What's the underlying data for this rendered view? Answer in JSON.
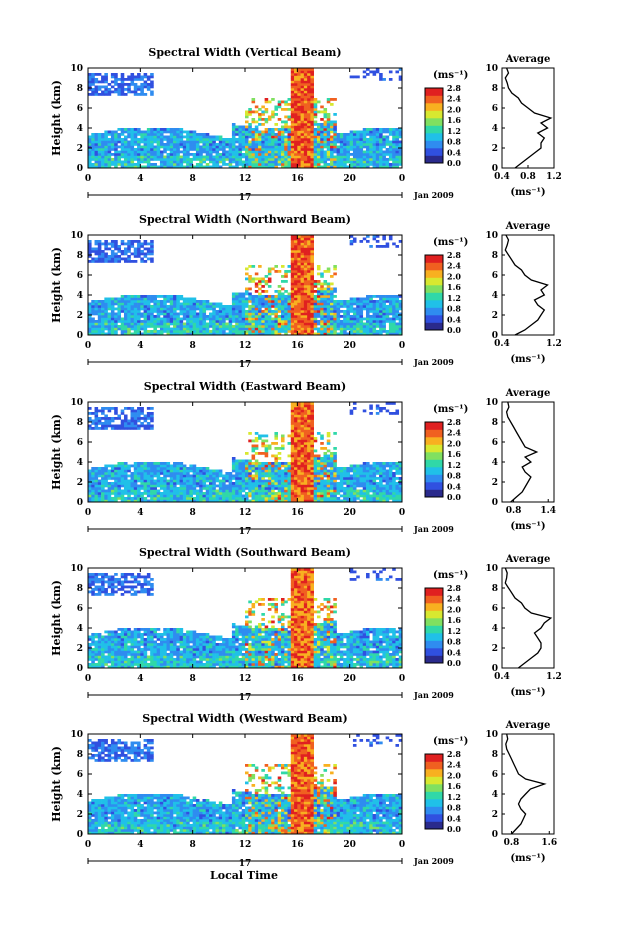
{
  "figure": {
    "x_axis_label": "Local Time",
    "date_label": "Jan 2009",
    "day_marker": "17",
    "unit_label": "(ms⁻¹)",
    "avg_title": "Average",
    "height_label": "Height (km)"
  },
  "chart_data": [
    {
      "type": "heatmap",
      "title": "Spectral Width (Vertical Beam)",
      "ylabel": "Height (km)",
      "xlabel": "Local Time",
      "x_ticks": [
        "0",
        "4",
        "8",
        "12",
        "16",
        "20",
        "0"
      ],
      "y_ticks": [
        "0",
        "2",
        "4",
        "6",
        "8",
        "10"
      ],
      "xlim": [
        0,
        24
      ],
      "ylim": [
        0,
        10
      ],
      "colorbar": {
        "label": "(ms⁻¹)",
        "ticks": [
          "0.0",
          "0.4",
          "0.8",
          "1.2",
          "1.6",
          "2.0",
          "2.4",
          "2.8"
        ]
      },
      "average": {
        "title": "Average",
        "xlabel": "(ms⁻¹)",
        "xticks": [
          "0.4",
          "0.8",
          "1.2"
        ],
        "xlim": [
          0.4,
          1.2
        ],
        "profile": [
          [
            0,
            0.6
          ],
          [
            0.5,
            0.7
          ],
          [
            1,
            0.8
          ],
          [
            1.5,
            0.9
          ],
          [
            2,
            1.0
          ],
          [
            2.5,
            1.0
          ],
          [
            3,
            1.05
          ],
          [
            3.5,
            0.95
          ],
          [
            4,
            1.1
          ],
          [
            4.5,
            1.0
          ],
          [
            5,
            1.15
          ],
          [
            5.5,
            0.9
          ],
          [
            6,
            0.8
          ],
          [
            6.5,
            0.7
          ],
          [
            7,
            0.65
          ],
          [
            7.5,
            0.55
          ],
          [
            8,
            0.5
          ],
          [
            8.5,
            0.48
          ],
          [
            9,
            0.45
          ],
          [
            9.5,
            0.5
          ],
          [
            10,
            0.47
          ]
        ]
      }
    },
    {
      "type": "heatmap",
      "title": "Spectral Width (Northward Beam)",
      "ylabel": "Height (km)",
      "xlabel": "Local Time",
      "x_ticks": [
        "0",
        "4",
        "8",
        "12",
        "16",
        "20",
        "0"
      ],
      "y_ticks": [
        "0",
        "2",
        "4",
        "6",
        "8",
        "10"
      ],
      "xlim": [
        0,
        24
      ],
      "ylim": [
        0,
        10
      ],
      "colorbar": {
        "label": "(ms⁻¹)",
        "ticks": [
          "0.0",
          "0.4",
          "0.8",
          "1.2",
          "1.6",
          "2.0",
          "2.4",
          "2.8"
        ]
      },
      "average": {
        "title": "Average",
        "xlabel": "(ms⁻¹)",
        "xticks": [
          "0.4",
          "1.2"
        ],
        "xlim": [
          0.4,
          1.2
        ],
        "profile": [
          [
            0,
            0.6
          ],
          [
            0.5,
            0.75
          ],
          [
            1,
            0.85
          ],
          [
            1.5,
            0.95
          ],
          [
            2,
            1.0
          ],
          [
            2.5,
            1.05
          ],
          [
            3,
            0.95
          ],
          [
            3.5,
            0.9
          ],
          [
            4,
            1.05
          ],
          [
            4.5,
            1.0
          ],
          [
            5,
            1.1
          ],
          [
            5.5,
            0.85
          ],
          [
            6,
            0.75
          ],
          [
            6.5,
            0.7
          ],
          [
            7,
            0.6
          ],
          [
            7.5,
            0.55
          ],
          [
            8,
            0.5
          ],
          [
            8.5,
            0.45
          ],
          [
            9,
            0.48
          ],
          [
            9.5,
            0.5
          ],
          [
            10,
            0.46
          ]
        ]
      }
    },
    {
      "type": "heatmap",
      "title": "Spectral Width (Eastward Beam)",
      "ylabel": "Height (km)",
      "xlabel": "Local Time",
      "x_ticks": [
        "0",
        "4",
        "8",
        "12",
        "16",
        "20",
        "0"
      ],
      "y_ticks": [
        "0",
        "2",
        "4",
        "6",
        "8",
        "10"
      ],
      "xlim": [
        0,
        24
      ],
      "ylim": [
        0,
        10
      ],
      "colorbar": {
        "label": "(ms⁻¹)",
        "ticks": [
          "0.0",
          "0.4",
          "0.8",
          "1.2",
          "1.6",
          "2.0",
          "2.4",
          "2.8"
        ]
      },
      "average": {
        "title": "Average",
        "xlabel": "(ms⁻¹)",
        "xticks": [
          "0.8",
          "1.4"
        ],
        "xlim": [
          0.6,
          1.5
        ],
        "profile": [
          [
            0,
            0.75
          ],
          [
            0.5,
            0.85
          ],
          [
            1,
            0.95
          ],
          [
            1.5,
            1.0
          ],
          [
            2,
            1.05
          ],
          [
            2.5,
            1.1
          ],
          [
            3,
            1.0
          ],
          [
            3.5,
            0.95
          ],
          [
            4,
            1.1
          ],
          [
            4.5,
            1.0
          ],
          [
            5,
            1.2
          ],
          [
            5.5,
            1.0
          ],
          [
            6,
            0.95
          ],
          [
            6.5,
            0.9
          ],
          [
            7,
            0.85
          ],
          [
            7.5,
            0.8
          ],
          [
            8,
            0.75
          ],
          [
            8.5,
            0.7
          ],
          [
            9,
            0.68
          ],
          [
            9.5,
            0.72
          ],
          [
            10,
            0.7
          ]
        ]
      }
    },
    {
      "type": "heatmap",
      "title": "Spectral Width (Southward Beam)",
      "ylabel": "Height (km)",
      "xlabel": "Local Time",
      "x_ticks": [
        "0",
        "4",
        "8",
        "12",
        "16",
        "20",
        "0"
      ],
      "y_ticks": [
        "0",
        "2",
        "4",
        "6",
        "8",
        "10"
      ],
      "xlim": [
        0,
        24
      ],
      "ylim": [
        0,
        10
      ],
      "colorbar": {
        "label": "(ms⁻¹)",
        "ticks": [
          "0.0",
          "0.4",
          "0.8",
          "1.2",
          "1.6",
          "2.0",
          "2.4",
          "2.8"
        ]
      },
      "average": {
        "title": "Average",
        "xlabel": "(ms⁻¹)",
        "xticks": [
          "0.4",
          "1.2"
        ],
        "xlim": [
          0.4,
          1.2
        ],
        "profile": [
          [
            0,
            0.65
          ],
          [
            0.5,
            0.75
          ],
          [
            1,
            0.85
          ],
          [
            1.5,
            0.95
          ],
          [
            2,
            1.0
          ],
          [
            2.5,
            1.0
          ],
          [
            3,
            0.95
          ],
          [
            3.5,
            0.9
          ],
          [
            4,
            1.0
          ],
          [
            4.5,
            1.05
          ],
          [
            5,
            1.15
          ],
          [
            5.5,
            0.85
          ],
          [
            6,
            0.75
          ],
          [
            6.5,
            0.7
          ],
          [
            7,
            0.6
          ],
          [
            7.5,
            0.55
          ],
          [
            8,
            0.5
          ],
          [
            8.5,
            0.45
          ],
          [
            9,
            0.47
          ],
          [
            9.5,
            0.48
          ],
          [
            10,
            0.45
          ]
        ]
      }
    },
    {
      "type": "heatmap",
      "title": "Spectral Width (Westward Beam)",
      "ylabel": "Height (km)",
      "xlabel": "Local Time",
      "x_ticks": [
        "0",
        "4",
        "8",
        "12",
        "16",
        "20",
        "0"
      ],
      "y_ticks": [
        "0",
        "2",
        "4",
        "6",
        "8",
        "10"
      ],
      "xlim": [
        0,
        24
      ],
      "ylim": [
        0,
        10
      ],
      "colorbar": {
        "label": "(ms⁻¹)",
        "ticks": [
          "0.0",
          "0.4",
          "0.8",
          "1.2",
          "1.6",
          "2.0",
          "2.4",
          "2.8"
        ]
      },
      "average": {
        "title": "Average",
        "xlabel": "(ms⁻¹)",
        "xticks": [
          "0.8",
          "1.6"
        ],
        "xlim": [
          0.6,
          1.7
        ],
        "profile": [
          [
            0,
            0.8
          ],
          [
            0.5,
            0.9
          ],
          [
            1,
            1.0
          ],
          [
            1.5,
            1.05
          ],
          [
            2,
            1.1
          ],
          [
            2.5,
            1.0
          ],
          [
            3,
            0.95
          ],
          [
            3.5,
            1.0
          ],
          [
            4,
            1.1
          ],
          [
            4.5,
            1.2
          ],
          [
            5,
            1.5
          ],
          [
            5.5,
            1.1
          ],
          [
            6,
            0.95
          ],
          [
            6.5,
            0.9
          ],
          [
            7,
            0.85
          ],
          [
            7.5,
            0.8
          ],
          [
            8,
            0.75
          ],
          [
            8.5,
            0.7
          ],
          [
            9,
            0.68
          ],
          [
            9.5,
            0.72
          ],
          [
            10,
            0.7
          ]
        ]
      }
    }
  ]
}
